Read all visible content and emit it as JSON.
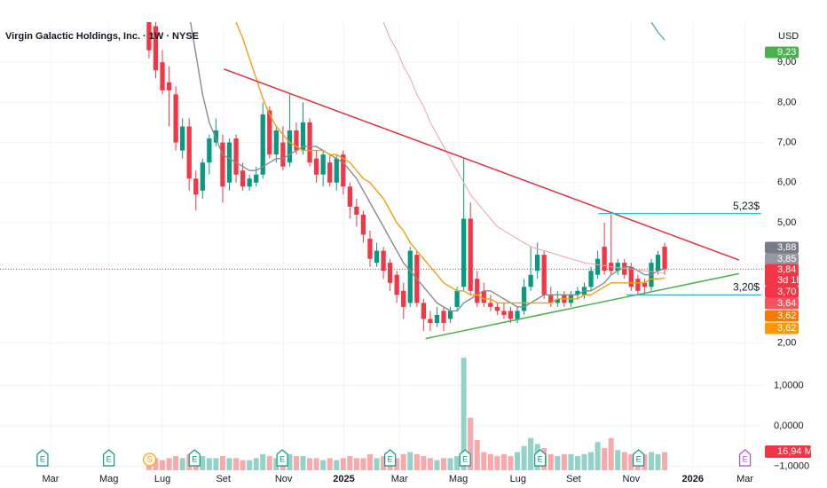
{
  "chart_data": {
    "type": "candlestick",
    "title": "Virgin Galactic Holdings, Inc. · 1W · NYSE",
    "currency": "USD",
    "categories": [
      null,
      null,
      null,
      null,
      null,
      null,
      null,
      null,
      null,
      null,
      null,
      null,
      null,
      null,
      null,
      null,
      null,
      null,
      null,
      null,
      null,
      null,
      null,
      null,
      null,
      null,
      null,
      null,
      null,
      null,
      null,
      null,
      null,
      null,
      null,
      null,
      null,
      null,
      null,
      null,
      null,
      null,
      null,
      null,
      null,
      null,
      null,
      null,
      null,
      null,
      null,
      null,
      null,
      null,
      null,
      null,
      null,
      null,
      null,
      null,
      null,
      null,
      null,
      null,
      null,
      null,
      null,
      null,
      null,
      null,
      null,
      null,
      null,
      null,
      null,
      null,
      null,
      null
    ],
    "open": [
      10.3,
      9.9,
      9.0,
      8.5,
      8.2,
      6.8,
      7.4,
      6.1,
      5.8,
      6.5,
      7.0,
      7.0,
      6.0,
      7.1,
      6.3,
      5.9,
      6.0,
      6.2,
      7.8,
      6.7,
      7.0,
      6.5,
      7.3,
      6.8,
      7.5,
      6.6,
      6.2,
      6.5,
      6.0,
      6.7,
      5.9,
      5.4,
      5.2,
      4.6,
      4.0,
      4.3,
      4.0,
      3.7,
      3.3,
      3.0,
      4.2,
      3.0,
      2.6,
      2.5,
      2.8,
      2.6,
      2.9,
      3.4,
      5.1,
      3.6,
      3.3,
      3.0,
      2.9,
      2.8,
      2.8,
      2.6,
      2.8,
      3.4,
      3.8,
      4.2,
      3.2,
      3.0,
      3.2,
      3.0,
      3.2,
      3.2,
      3.4,
      3.7,
      4.4,
      4.0,
      3.8,
      4.0,
      3.9,
      3.6,
      3.5,
      3.4,
      3.8,
      4.4
    ],
    "high": [
      10.6,
      10.1,
      9.3,
      8.9,
      8.4,
      7.6,
      7.6,
      6.3,
      6.6,
      7.2,
      7.6,
      7.2,
      7.1,
      7.2,
      6.5,
      6.2,
      6.4,
      8.0,
      7.9,
      7.4,
      7.4,
      8.2,
      7.5,
      8.0,
      7.6,
      6.8,
      6.8,
      6.7,
      6.7,
      6.8,
      6.0,
      5.6,
      5.3,
      4.8,
      4.5,
      4.4,
      4.1,
      3.8,
      3.5,
      4.4,
      4.3,
      3.1,
      2.8,
      2.9,
      2.9,
      2.9,
      3.4,
      6.6,
      5.5,
      3.8,
      3.5,
      3.2,
      3.0,
      3.0,
      2.9,
      2.9,
      3.6,
      4.4,
      4.5,
      4.3,
      3.4,
      3.3,
      3.3,
      3.3,
      3.4,
      3.5,
      3.9,
      4.3,
      5.0,
      5.2,
      4.1,
      4.1,
      4.0,
      3.7,
      3.6,
      4.1,
      4.3,
      4.5
    ],
    "low": [
      9.1,
      8.6,
      8.2,
      7.4,
      6.8,
      6.6,
      5.8,
      5.3,
      5.6,
      6.2,
      6.9,
      5.5,
      5.8,
      6.0,
      5.8,
      5.8,
      5.9,
      6.1,
      6.6,
      6.5,
      6.3,
      6.4,
      6.7,
      6.7,
      6.4,
      6.0,
      5.9,
      5.9,
      5.8,
      5.7,
      5.1,
      4.9,
      4.5,
      3.9,
      3.9,
      3.6,
      3.3,
      3.0,
      2.6,
      2.9,
      2.9,
      2.3,
      2.3,
      2.4,
      2.3,
      2.5,
      2.8,
      3.3,
      3.2,
      2.9,
      2.9,
      2.8,
      2.7,
      2.6,
      2.5,
      2.5,
      2.7,
      3.3,
      3.6,
      3.1,
      2.9,
      2.9,
      2.9,
      2.9,
      3.1,
      3.1,
      3.3,
      3.6,
      3.7,
      3.7,
      3.7,
      3.6,
      3.3,
      3.2,
      3.2,
      3.3,
      3.7,
      3.7
    ],
    "close": [
      9.3,
      8.8,
      8.3,
      8.3,
      7.0,
      7.4,
      6.1,
      5.7,
      6.5,
      7.1,
      7.3,
      5.9,
      7.0,
      6.2,
      5.9,
      6.1,
      6.2,
      7.7,
      6.7,
      7.3,
      6.4,
      7.3,
      6.8,
      7.5,
      6.5,
      6.2,
      6.7,
      6.0,
      6.6,
      5.9,
      5.4,
      5.2,
      4.7,
      4.1,
      4.3,
      3.8,
      3.5,
      3.2,
      2.9,
      4.3,
      3.0,
      2.6,
      2.5,
      2.7,
      2.5,
      2.8,
      3.3,
      5.1,
      3.3,
      3.0,
      3.0,
      2.9,
      2.8,
      2.7,
      2.6,
      2.8,
      3.4,
      3.7,
      4.2,
      3.2,
      3.0,
      3.1,
      3.0,
      3.2,
      3.3,
      3.4,
      3.8,
      4.1,
      3.8,
      3.8,
      4.0,
      3.7,
      3.4,
      3.3,
      3.4,
      4.0,
      4.2,
      3.84
    ],
    "colors": {
      "up": "#089981",
      "down": "#f23645",
      "up_volume": "#93d2c9",
      "down_volume": "#f7a9ac"
    },
    "xlim": [
      -22.25,
      91.7
    ],
    "xticks": [
      {
        "value": -14.7,
        "label": "Mar"
      },
      {
        "value": -6,
        "label": "Mag"
      },
      {
        "value": 2,
        "label": "Lug"
      },
      {
        "value": 11.1,
        "label": "Set"
      },
      {
        "value": 20.1,
        "label": "Nov"
      },
      {
        "value": 29.1,
        "label": "2025"
      },
      {
        "value": 37.4,
        "label": "Mar"
      },
      {
        "value": 46.2,
        "label": "Mag"
      },
      {
        "value": 55.1,
        "label": "Lug"
      },
      {
        "value": 63.4,
        "label": "Set"
      },
      {
        "value": 72,
        "label": "Nov"
      },
      {
        "value": 81.2,
        "label": "2026"
      },
      {
        "value": 89,
        "label": "Mar"
      }
    ],
    "ylim": [
      1.88,
      10.0
    ],
    "yticks": [
      {
        "value": 2,
        "label": "2,00"
      },
      {
        "value": 5,
        "label": "5,00"
      },
      {
        "value": 6,
        "label": "6,00"
      },
      {
        "value": 7,
        "label": "7,00"
      },
      {
        "value": 8,
        "label": "8,00"
      },
      {
        "value": 9,
        "label": "9,00"
      }
    ],
    "volume": {
      "values": [
        -0.85,
        -0.8,
        -0.85,
        -0.8,
        -0.75,
        -0.8,
        -0.7,
        -0.7,
        -0.75,
        -0.8,
        -0.8,
        -0.75,
        -0.8,
        -0.8,
        -0.85,
        -0.85,
        -0.8,
        -0.7,
        -0.75,
        -0.8,
        -0.75,
        -0.7,
        -0.75,
        -0.75,
        -0.8,
        -0.8,
        -0.85,
        -0.8,
        -0.85,
        -0.8,
        -0.75,
        -0.8,
        -0.8,
        -0.7,
        -0.8,
        -0.75,
        -0.75,
        -0.8,
        -0.7,
        -0.65,
        -0.7,
        -0.75,
        -0.8,
        -0.85,
        -0.8,
        -0.8,
        -0.75,
        1.69,
        0.2,
        -0.35,
        -0.65,
        -0.7,
        -0.75,
        -0.7,
        -0.75,
        -0.65,
        -0.5,
        -0.3,
        -0.45,
        -0.55,
        -0.7,
        -0.75,
        -0.7,
        -0.7,
        -0.75,
        -0.7,
        -0.65,
        -0.4,
        -0.55,
        -0.3,
        -0.6,
        -0.65,
        -0.7,
        -0.75,
        -0.7,
        -0.65,
        -0.7,
        -0.65
      ],
      "ylim": [
        -1.1,
        1.87
      ],
      "yticks": [
        {
          "value": 1,
          "label": "1,0000"
        },
        {
          "value": 0,
          "label": "0,0000"
        },
        {
          "value": -1,
          "label": "−1,0000"
        }
      ],
      "last_label": "16,94 M"
    },
    "ma_lines": [
      {
        "color": "#8a8a8a",
        "values": [
          null,
          null,
          null,
          null,
          null,
          null,
          10.2,
          9.2,
          8.2,
          7.5,
          7.1,
          6.7,
          6.6,
          6.5,
          6.4,
          6.3,
          6.3,
          6.4,
          6.5,
          6.6,
          6.6,
          6.7,
          6.8,
          6.9,
          6.9,
          6.9,
          6.8,
          6.7,
          6.6,
          6.5,
          6.3,
          6.1,
          5.8,
          5.5,
          5.2,
          4.9,
          4.6,
          4.3,
          4.0,
          3.8,
          3.6,
          3.4,
          3.2,
          3.0,
          2.9,
          2.8,
          2.8,
          3.0,
          3.1,
          3.2,
          3.3,
          3.3,
          3.2,
          3.1,
          3.0,
          2.9,
          2.9,
          3.0,
          3.1,
          3.2,
          3.2,
          3.2,
          3.2,
          3.2,
          3.2,
          3.3,
          3.3,
          3.4,
          3.5,
          3.7,
          3.8,
          3.9,
          3.9,
          3.8,
          3.7,
          3.7,
          3.8,
          3.85
        ]
      },
      {
        "color": "#f59f0b",
        "values": [
          null,
          null,
          null,
          null,
          null,
          null,
          null,
          null,
          null,
          null,
          null,
          null,
          null,
          10.0,
          9.6,
          9.1,
          8.6,
          8.1,
          7.7,
          7.4,
          7.2,
          7.0,
          6.9,
          6.8,
          6.8,
          6.8,
          6.8,
          6.7,
          6.7,
          6.6,
          6.5,
          6.3,
          6.1,
          6.0,
          5.8,
          5.6,
          5.3,
          5.0,
          4.8,
          4.5,
          4.3,
          4.1,
          3.9,
          3.7,
          3.5,
          3.4,
          3.3,
          3.3,
          3.2,
          3.2,
          3.1,
          3.1,
          3.0,
          3.0,
          3.0,
          3.0,
          3.0,
          3.0,
          3.0,
          3.0,
          3.0,
          3.1,
          3.1,
          3.1,
          3.1,
          3.2,
          3.2,
          3.3,
          3.4,
          3.5,
          3.5,
          3.5,
          3.5,
          3.5,
          3.5,
          3.6,
          3.6,
          3.62
        ]
      },
      {
        "color": "#f4a3a8",
        "values": [
          null,
          null,
          null,
          null,
          null,
          null,
          null,
          null,
          null,
          null,
          null,
          null,
          null,
          null,
          null,
          null,
          null,
          null,
          null,
          null,
          null,
          null,
          null,
          null,
          null,
          null,
          null,
          null,
          null,
          null,
          null,
          null,
          null,
          null,
          null,
          10.0,
          9.6,
          9.3,
          8.9,
          8.6,
          8.2,
          7.9,
          7.5,
          7.2,
          6.9,
          6.6,
          6.3,
          6.0,
          5.7,
          5.5,
          5.3,
          5.1,
          4.9,
          4.8,
          4.7,
          4.6,
          4.5,
          4.4,
          4.35,
          4.3,
          4.25,
          4.2,
          4.15,
          4.1,
          4.05,
          4.0,
          3.98,
          3.95,
          3.93,
          3.9,
          3.88,
          3.86,
          3.84,
          3.82,
          3.8,
          3.78,
          3.76,
          3.74
        ]
      },
      {
        "color": "#5fa8c9",
        "values": [
          null,
          null,
          null,
          null,
          null,
          null,
          null,
          null,
          null,
          null,
          null,
          null,
          null,
          null,
          null,
          null,
          null,
          null,
          null,
          null,
          null,
          null,
          null,
          null,
          null,
          null,
          null,
          null,
          null,
          null,
          null,
          null,
          null,
          null,
          null,
          null,
          null,
          null,
          null,
          null,
          null,
          null,
          null,
          null,
          null,
          null,
          null,
          null,
          null,
          null,
          null,
          null,
          null,
          null,
          null,
          null,
          null,
          null,
          null,
          null,
          null,
          null,
          null,
          null,
          null,
          null,
          null,
          null,
          null,
          null,
          null,
          null,
          null,
          null,
          null,
          10.0,
          9.75,
          9.55
        ]
      }
    ],
    "trend_lines": [
      {
        "color": "#e0303f",
        "from": [
          11.2,
          8.83
        ],
        "to": [
          88.1,
          4.07
        ]
      },
      {
        "color": "#4caf50",
        "from": [
          41.3,
          2.11
        ],
        "to": [
          88.1,
          3.73
        ]
      }
    ],
    "levels": [
      {
        "value": 5.23,
        "label": "5,23$",
        "from": 67.1,
        "to": 91.4,
        "color": "#2bb3c9"
      },
      {
        "value": 3.2,
        "label": "3,20$",
        "from": 71.3,
        "to": 91.4,
        "color": "#2bb3c9"
      }
    ],
    "events": [
      {
        "x": -15.9,
        "label": "E",
        "color": "#089981"
      },
      {
        "x": -6,
        "label": "E",
        "color": "#089981"
      },
      {
        "x": 0.1,
        "label": "S",
        "color": "#f5a623"
      },
      {
        "x": 6.8,
        "label": "E",
        "color": "#089981"
      },
      {
        "x": 19.9,
        "label": "E",
        "color": "#089981"
      },
      {
        "x": 36,
        "label": "E",
        "color": "#089981"
      },
      {
        "x": 47.2,
        "label": "E",
        "color": "#089981"
      },
      {
        "x": 58.4,
        "label": "E",
        "color": "#089981"
      },
      {
        "x": 73.1,
        "label": "E",
        "color": "#089981"
      },
      {
        "x": 89,
        "label": "E",
        "color": "#b24cd6"
      }
    ],
    "price_labels": [
      {
        "value": 9.23,
        "label": "9,23",
        "color": "#4caf50"
      },
      {
        "value": 3.88,
        "label": "3,88",
        "color": "#787b86"
      },
      {
        "value": 3.85,
        "label": "3,85",
        "color": "#9598a1"
      },
      {
        "value": 3.84,
        "label": "3,84",
        "color": "#f23645"
      },
      {
        "value": 3.7,
        "label": "3,70",
        "color": "#f23645"
      },
      {
        "value": 3.64,
        "label": "3,64",
        "color": "#f7525f"
      },
      {
        "value": 3.62,
        "label": "3,62",
        "color": "#f57c00"
      },
      {
        "value": 3.62,
        "label": "3,62",
        "color": "#ff9800"
      }
    ],
    "countdown": "3d 1h"
  }
}
